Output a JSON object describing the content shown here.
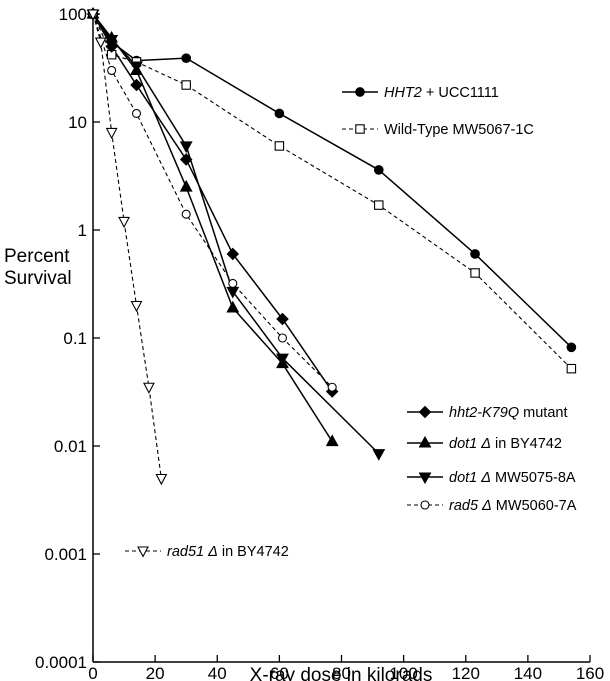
{
  "chart_data": {
    "type": "line",
    "title": "",
    "xlabel": "X-ray dose in kilorads",
    "ylabel": [
      "Percent",
      "Survival"
    ],
    "xlim": [
      0,
      160
    ],
    "ylim": [
      0.0001,
      100
    ],
    "yscale": "log",
    "x_ticks": [
      0,
      20,
      40,
      60,
      80,
      100,
      120,
      140,
      160
    ],
    "y_ticks": [
      {
        "value": 100,
        "label": "100"
      },
      {
        "value": 10,
        "label": "10"
      },
      {
        "value": 1,
        "label": "1"
      },
      {
        "value": 0.1,
        "label": "0.1"
      },
      {
        "value": 0.01,
        "label": "0.01"
      },
      {
        "value": 0.001,
        "label": "0.001"
      },
      {
        "value": 0.0001,
        "label": "0.0001"
      }
    ],
    "grid": false,
    "legend_placement": "inside, split: top-right, lower-right, lower-left",
    "series": [
      {
        "legend": [
          {
            "text": "HHT2",
            "italic": true
          },
          {
            "text": " + UCC1111",
            "italic": false
          }
        ],
        "marker": "filled-circle",
        "dashed": false,
        "x": [
          0,
          6,
          14,
          30,
          60,
          92,
          123,
          154
        ],
        "y": [
          100,
          55,
          37,
          39,
          12,
          3.6,
          0.6,
          0.082
        ]
      },
      {
        "legend": [
          {
            "text": "Wild-Type MW5067-1C",
            "italic": false
          }
        ],
        "marker": "open-square",
        "dashed": true,
        "x": [
          0,
          6,
          14,
          30,
          60,
          92,
          123,
          154
        ],
        "y": [
          100,
          42,
          36,
          22,
          6,
          1.7,
          0.4,
          0.052
        ]
      },
      {
        "legend": [
          {
            "text": "hht2-K79Q",
            "italic": true
          },
          {
            "text": " mutant",
            "italic": false
          }
        ],
        "marker": "filled-diamond",
        "dashed": false,
        "x": [
          0,
          6,
          14,
          30,
          45,
          61,
          77
        ],
        "y": [
          100,
          50,
          22,
          4.5,
          0.6,
          0.15,
          0.032
        ]
      },
      {
        "legend": [
          {
            "text": "dot1 Δ",
            "italic": true
          },
          {
            "text": " in BY4742",
            "italic": false
          }
        ],
        "marker": "filled-triangle-up",
        "dashed": false,
        "x": [
          0,
          6,
          14,
          30,
          45,
          61,
          77
        ],
        "y": [
          100,
          60,
          30,
          2.5,
          0.19,
          0.058,
          0.011
        ]
      },
      {
        "legend": [
          {
            "text": "dot1 Δ",
            "italic": true
          },
          {
            "text": " MW5075-8A",
            "italic": false
          }
        ],
        "marker": "filled-triangle-down",
        "dashed": false,
        "x": [
          0,
          6,
          14,
          30,
          45,
          61,
          92
        ],
        "y": [
          100,
          58,
          33,
          6,
          0.27,
          0.065,
          0.0085
        ]
      },
      {
        "legend": [
          {
            "text": "rad5 Δ",
            "italic": true
          },
          {
            "text": " MW5060-7A",
            "italic": false
          }
        ],
        "marker": "open-circle",
        "dashed": true,
        "x": [
          0,
          6,
          14,
          30,
          45,
          61,
          77
        ],
        "y": [
          100,
          30,
          12,
          1.4,
          0.32,
          0.1,
          0.035
        ]
      },
      {
        "legend": [
          {
            "text": "rad51 Δ",
            "italic": true
          },
          {
            "text": " in BY4742",
            "italic": false
          }
        ],
        "marker": "open-triangle-down",
        "dashed": true,
        "x": [
          0,
          2.5,
          6,
          10,
          14,
          18,
          22
        ],
        "y": [
          100,
          55,
          8,
          1.2,
          0.2,
          0.035,
          0.005
        ]
      }
    ]
  }
}
